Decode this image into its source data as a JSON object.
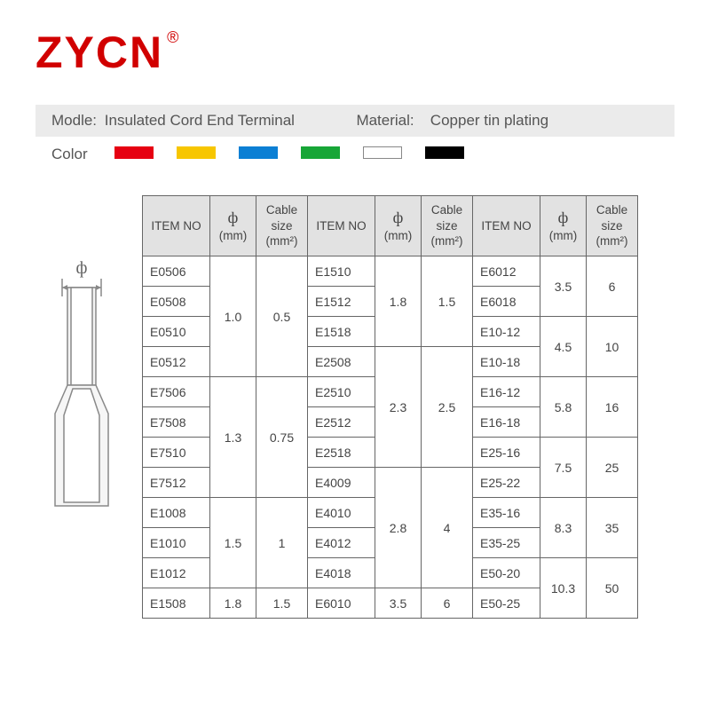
{
  "brand": {
    "name": "ZYCN",
    "registered": "®",
    "color": "#d10000"
  },
  "info": {
    "model_label": "Modle:",
    "model_value": "Insulated Cord End Terminal",
    "material_label": "Material:",
    "material_value": "Copper tin plating",
    "color_label": "Color",
    "bar_bg": "#ebebeb"
  },
  "colors": [
    {
      "hex": "#e60012",
      "outline": false
    },
    {
      "hex": "#f7c600",
      "outline": false
    },
    {
      "hex": "#0b7fd4",
      "outline": false
    },
    {
      "hex": "#17a637",
      "outline": false
    },
    {
      "hex": "#ffffff",
      "outline": true
    },
    {
      "hex": "#000000",
      "outline": false
    }
  ],
  "diagram": {
    "phi": "ф",
    "stroke": "#888888",
    "fill": "#f0f0f0"
  },
  "table": {
    "headers": {
      "item": "ITEM NO",
      "phi_line1": "ф",
      "phi_line2": "(mm)",
      "cable_line1": "Cable",
      "cable_line2": "size",
      "cable_line3": "(mm²)"
    },
    "header_bg": "#e2e2e2",
    "border_color": "#666666",
    "groups_left": [
      {
        "items": [
          "E0506",
          "E0508",
          "E0510",
          "E0512"
        ],
        "phi": "1.0",
        "cable": "0.5"
      },
      {
        "items": [
          "E7506",
          "E7508",
          "E7510",
          "E7512"
        ],
        "phi": "1.3",
        "cable": "0.75"
      },
      {
        "items": [
          "E1008",
          "E1010",
          "E1012"
        ],
        "phi": "1.5",
        "cable": "1"
      },
      {
        "items": [
          "E1508"
        ],
        "phi": "1.8",
        "cable": "1.5"
      }
    ],
    "groups_mid": [
      {
        "items": [
          "E1510",
          "E1512",
          "E1518"
        ],
        "phi": "1.8",
        "cable": "1.5"
      },
      {
        "items": [
          "E2508",
          "E2510",
          "E2512",
          "E2518"
        ],
        "phi": "2.3",
        "cable": "2.5"
      },
      {
        "items": [
          "E4009",
          "E4010",
          "E4012",
          "E4018"
        ],
        "phi": "2.8",
        "cable": "4"
      },
      {
        "items": [
          "E6010"
        ],
        "phi": "3.5",
        "cable": "6"
      }
    ],
    "groups_right": [
      {
        "items": [
          "E6012",
          "E6018"
        ],
        "phi": "3.5",
        "cable": "6"
      },
      {
        "items": [
          "E10-12",
          "E10-18"
        ],
        "phi": "4.5",
        "cable": "10"
      },
      {
        "items": [
          "E16-12",
          "E16-18"
        ],
        "phi": "5.8",
        "cable": "16"
      },
      {
        "items": [
          "E25-16",
          "E25-22"
        ],
        "phi": "7.5",
        "cable": "25"
      },
      {
        "items": [
          "E35-16",
          "E35-25"
        ],
        "phi": "8.3",
        "cable": "35"
      },
      {
        "items": [
          "E50-20",
          "E50-25"
        ],
        "phi": "10.3",
        "cable": "50"
      }
    ]
  }
}
